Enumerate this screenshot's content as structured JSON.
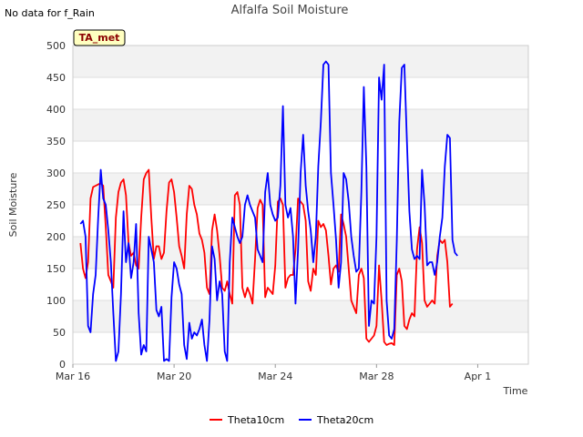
{
  "header": {
    "title": "Alfalfa Soil Moisture",
    "no_data_note": "No data for f_Rain",
    "badge": "TA_met"
  },
  "chart_data": {
    "type": "line",
    "title": "Alfalfa Soil Moisture",
    "xlabel": "Time",
    "ylabel": "Soil Moisture",
    "x_unit": "days since Mar 16",
    "x_ticks": [
      {
        "x": 0,
        "label": "Mar 16"
      },
      {
        "x": 4,
        "label": "Mar 20"
      },
      {
        "x": 8,
        "label": "Mar 24"
      },
      {
        "x": 12,
        "label": "Mar 28"
      },
      {
        "x": 16,
        "label": "Apr 1"
      }
    ],
    "xlim": [
      0,
      18
    ],
    "ylim": [
      0,
      500
    ],
    "y_ticks": [
      0,
      50,
      100,
      150,
      200,
      250,
      300,
      350,
      400,
      450,
      500
    ],
    "grid": true,
    "legend_position": "bottom-center",
    "series": [
      {
        "name": "Theta10cm",
        "color": "#ff0000",
        "points": [
          [
            0.3,
            190
          ],
          [
            0.4,
            150
          ],
          [
            0.5,
            135
          ],
          [
            0.6,
            160
          ],
          [
            0.7,
            260
          ],
          [
            0.8,
            278
          ],
          [
            0.9,
            280
          ],
          [
            1.0,
            282
          ],
          [
            1.1,
            284
          ],
          [
            1.2,
            280
          ],
          [
            1.3,
            215
          ],
          [
            1.4,
            140
          ],
          [
            1.5,
            130
          ],
          [
            1.6,
            120
          ],
          [
            1.7,
            230
          ],
          [
            1.8,
            270
          ],
          [
            1.9,
            285
          ],
          [
            2.0,
            290
          ],
          [
            2.1,
            265
          ],
          [
            2.2,
            190
          ],
          [
            2.3,
            170
          ],
          [
            2.4,
            175
          ],
          [
            2.5,
            155
          ],
          [
            2.6,
            150
          ],
          [
            2.7,
            230
          ],
          [
            2.8,
            290
          ],
          [
            2.9,
            300
          ],
          [
            3.0,
            305
          ],
          [
            3.1,
            230
          ],
          [
            3.2,
            165
          ],
          [
            3.3,
            185
          ],
          [
            3.4,
            185
          ],
          [
            3.5,
            165
          ],
          [
            3.6,
            175
          ],
          [
            3.7,
            240
          ],
          [
            3.8,
            285
          ],
          [
            3.9,
            290
          ],
          [
            4.0,
            270
          ],
          [
            4.1,
            230
          ],
          [
            4.2,
            185
          ],
          [
            4.3,
            170
          ],
          [
            4.4,
            150
          ],
          [
            4.5,
            235
          ],
          [
            4.6,
            280
          ],
          [
            4.7,
            275
          ],
          [
            4.8,
            250
          ],
          [
            4.9,
            235
          ],
          [
            5.0,
            205
          ],
          [
            5.1,
            195
          ],
          [
            5.2,
            175
          ],
          [
            5.3,
            120
          ],
          [
            5.4,
            110
          ],
          [
            5.5,
            210
          ],
          [
            5.6,
            235
          ],
          [
            5.7,
            210
          ],
          [
            5.8,
            170
          ],
          [
            5.9,
            120
          ],
          [
            6.0,
            115
          ],
          [
            6.1,
            130
          ],
          [
            6.2,
            110
          ],
          [
            6.3,
            95
          ],
          [
            6.4,
            265
          ],
          [
            6.5,
            270
          ],
          [
            6.6,
            250
          ],
          [
            6.7,
            120
          ],
          [
            6.8,
            105
          ],
          [
            6.9,
            120
          ],
          [
            7.0,
            110
          ],
          [
            7.1,
            95
          ],
          [
            7.2,
            165
          ],
          [
            7.3,
            245
          ],
          [
            7.4,
            258
          ],
          [
            7.5,
            250
          ],
          [
            7.6,
            105
          ],
          [
            7.7,
            120
          ],
          [
            7.8,
            115
          ],
          [
            7.9,
            110
          ],
          [
            8.0,
            155
          ],
          [
            8.1,
            255
          ],
          [
            8.2,
            260
          ],
          [
            8.3,
            250
          ],
          [
            8.4,
            120
          ],
          [
            8.5,
            135
          ],
          [
            8.6,
            140
          ],
          [
            8.7,
            140
          ],
          [
            8.8,
            180
          ],
          [
            8.9,
            260
          ],
          [
            9.0,
            255
          ],
          [
            9.1,
            250
          ],
          [
            9.2,
            225
          ],
          [
            9.3,
            130
          ],
          [
            9.4,
            115
          ],
          [
            9.5,
            150
          ],
          [
            9.6,
            140
          ],
          [
            9.7,
            225
          ],
          [
            9.8,
            215
          ],
          [
            9.9,
            220
          ],
          [
            10.0,
            210
          ],
          [
            10.1,
            170
          ],
          [
            10.2,
            125
          ],
          [
            10.3,
            150
          ],
          [
            10.4,
            155
          ],
          [
            10.5,
            145
          ],
          [
            10.6,
            235
          ],
          [
            10.7,
            220
          ],
          [
            10.8,
            200
          ],
          [
            10.9,
            150
          ],
          [
            11.0,
            100
          ],
          [
            11.1,
            90
          ],
          [
            11.2,
            80
          ],
          [
            11.3,
            140
          ],
          [
            11.4,
            150
          ],
          [
            11.5,
            135
          ],
          [
            11.6,
            40
          ],
          [
            11.7,
            35
          ],
          [
            11.8,
            40
          ],
          [
            11.9,
            45
          ],
          [
            12.0,
            60
          ],
          [
            12.1,
            155
          ],
          [
            12.2,
            100
          ],
          [
            12.3,
            35
          ],
          [
            12.4,
            30
          ],
          [
            12.5,
            32
          ],
          [
            12.6,
            33
          ],
          [
            12.7,
            30
          ],
          [
            12.8,
            140
          ],
          [
            12.9,
            150
          ],
          [
            13.0,
            130
          ],
          [
            13.1,
            60
          ],
          [
            13.2,
            55
          ],
          [
            13.3,
            70
          ],
          [
            13.4,
            80
          ],
          [
            13.5,
            75
          ],
          [
            13.6,
            180
          ],
          [
            13.7,
            215
          ],
          [
            13.8,
            190
          ],
          [
            13.9,
            100
          ],
          [
            14.0,
            90
          ],
          [
            14.1,
            95
          ],
          [
            14.2,
            100
          ],
          [
            14.3,
            95
          ],
          [
            14.4,
            170
          ],
          [
            14.5,
            195
          ],
          [
            14.6,
            190
          ],
          [
            14.7,
            195
          ],
          [
            14.8,
            160
          ],
          [
            14.9,
            90
          ],
          [
            15.0,
            95
          ]
        ]
      },
      {
        "name": "Theta20cm",
        "color": "#0000ff",
        "points": [
          [
            0.3,
            220
          ],
          [
            0.4,
            225
          ],
          [
            0.5,
            200
          ],
          [
            0.6,
            60
          ],
          [
            0.7,
            50
          ],
          [
            0.8,
            110
          ],
          [
            0.9,
            140
          ],
          [
            1.0,
            230
          ],
          [
            1.1,
            305
          ],
          [
            1.2,
            260
          ],
          [
            1.3,
            250
          ],
          [
            1.4,
            210
          ],
          [
            1.5,
            160
          ],
          [
            1.6,
            80
          ],
          [
            1.7,
            5
          ],
          [
            1.8,
            20
          ],
          [
            1.9,
            110
          ],
          [
            2.0,
            240
          ],
          [
            2.1,
            160
          ],
          [
            2.2,
            190
          ],
          [
            2.3,
            135
          ],
          [
            2.4,
            160
          ],
          [
            2.5,
            220
          ],
          [
            2.6,
            80
          ],
          [
            2.7,
            15
          ],
          [
            2.8,
            30
          ],
          [
            2.9,
            20
          ],
          [
            3.0,
            200
          ],
          [
            3.1,
            180
          ],
          [
            3.2,
            160
          ],
          [
            3.3,
            85
          ],
          [
            3.4,
            75
          ],
          [
            3.5,
            90
          ],
          [
            3.6,
            5
          ],
          [
            3.7,
            8
          ],
          [
            3.8,
            5
          ],
          [
            3.9,
            105
          ],
          [
            4.0,
            160
          ],
          [
            4.1,
            150
          ],
          [
            4.2,
            125
          ],
          [
            4.3,
            110
          ],
          [
            4.4,
            30
          ],
          [
            4.5,
            8
          ],
          [
            4.6,
            65
          ],
          [
            4.7,
            40
          ],
          [
            4.8,
            50
          ],
          [
            4.9,
            45
          ],
          [
            5.0,
            55
          ],
          [
            5.1,
            70
          ],
          [
            5.2,
            30
          ],
          [
            5.3,
            5
          ],
          [
            5.4,
            70
          ],
          [
            5.5,
            185
          ],
          [
            5.6,
            165
          ],
          [
            5.7,
            100
          ],
          [
            5.8,
            130
          ],
          [
            5.9,
            110
          ],
          [
            6.0,
            20
          ],
          [
            6.1,
            5
          ],
          [
            6.2,
            160
          ],
          [
            6.3,
            230
          ],
          [
            6.4,
            215
          ],
          [
            6.5,
            200
          ],
          [
            6.6,
            190
          ],
          [
            6.7,
            200
          ],
          [
            6.8,
            250
          ],
          [
            6.9,
            265
          ],
          [
            7.0,
            250
          ],
          [
            7.1,
            240
          ],
          [
            7.2,
            230
          ],
          [
            7.3,
            180
          ],
          [
            7.4,
            170
          ],
          [
            7.5,
            160
          ],
          [
            7.6,
            270
          ],
          [
            7.7,
            300
          ],
          [
            7.8,
            250
          ],
          [
            7.9,
            235
          ],
          [
            8.0,
            225
          ],
          [
            8.1,
            230
          ],
          [
            8.2,
            280
          ],
          [
            8.3,
            405
          ],
          [
            8.4,
            250
          ],
          [
            8.5,
            230
          ],
          [
            8.6,
            245
          ],
          [
            8.7,
            200
          ],
          [
            8.8,
            95
          ],
          [
            8.9,
            180
          ],
          [
            9.0,
            300
          ],
          [
            9.1,
            360
          ],
          [
            9.2,
            280
          ],
          [
            9.3,
            240
          ],
          [
            9.4,
            210
          ],
          [
            9.5,
            160
          ],
          [
            9.6,
            200
          ],
          [
            9.7,
            310
          ],
          [
            9.8,
            380
          ],
          [
            9.9,
            470
          ],
          [
            10.0,
            475
          ],
          [
            10.1,
            470
          ],
          [
            10.2,
            300
          ],
          [
            10.3,
            250
          ],
          [
            10.4,
            195
          ],
          [
            10.5,
            120
          ],
          [
            10.6,
            160
          ],
          [
            10.7,
            300
          ],
          [
            10.8,
            290
          ],
          [
            10.9,
            255
          ],
          [
            11.0,
            200
          ],
          [
            11.1,
            170
          ],
          [
            11.2,
            145
          ],
          [
            11.3,
            150
          ],
          [
            11.4,
            270
          ],
          [
            11.5,
            435
          ],
          [
            11.6,
            310
          ],
          [
            11.7,
            60
          ],
          [
            11.8,
            100
          ],
          [
            11.9,
            95
          ],
          [
            12.0,
            200
          ],
          [
            12.1,
            450
          ],
          [
            12.2,
            415
          ],
          [
            12.3,
            470
          ],
          [
            12.4,
            100
          ],
          [
            12.5,
            45
          ],
          [
            12.6,
            40
          ],
          [
            12.7,
            55
          ],
          [
            12.8,
            195
          ],
          [
            12.9,
            380
          ],
          [
            13.0,
            465
          ],
          [
            13.1,
            470
          ],
          [
            13.2,
            350
          ],
          [
            13.3,
            240
          ],
          [
            13.4,
            180
          ],
          [
            13.5,
            165
          ],
          [
            13.6,
            170
          ],
          [
            13.7,
            165
          ],
          [
            13.8,
            305
          ],
          [
            13.9,
            250
          ],
          [
            14.0,
            155
          ],
          [
            14.1,
            160
          ],
          [
            14.2,
            160
          ],
          [
            14.3,
            140
          ],
          [
            14.4,
            160
          ],
          [
            14.5,
            200
          ],
          [
            14.6,
            230
          ],
          [
            14.7,
            310
          ],
          [
            14.8,
            360
          ],
          [
            14.9,
            355
          ],
          [
            15.0,
            195
          ],
          [
            15.1,
            175
          ],
          [
            15.2,
            170
          ]
        ]
      }
    ]
  }
}
